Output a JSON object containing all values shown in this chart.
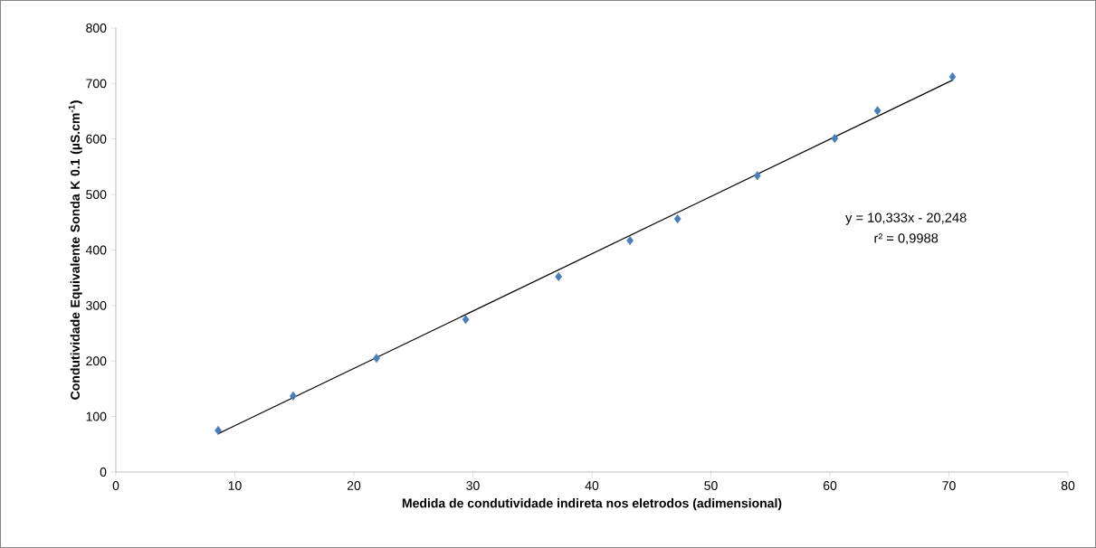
{
  "chart_data": {
    "type": "scatter",
    "xlabel": "Medida de condutividade  indireta nos eletrodos (adimensional)",
    "ylabel": "Condutividade Equivalente Sonda K 0.1 (µS.cm$^{-1}$)",
    "xlim": [
      0,
      80
    ],
    "xticks": [
      0,
      10,
      20,
      30,
      40,
      50,
      60,
      70,
      80
    ],
    "ylim": [
      0,
      800
    ],
    "yticks": [
      0,
      100,
      200,
      300,
      400,
      500,
      600,
      700,
      800
    ],
    "grid": false,
    "annotations": [
      "y = 10,333x - 20,248",
      "r² = 0,9988"
    ],
    "series": [
      {
        "color": "#4a7ebb",
        "marker": "diamond",
        "x": [
          8.6,
          14.9,
          21.9,
          29.4,
          37.2,
          43.2,
          47.2,
          53.9,
          60.4,
          64.0,
          70.3
        ],
        "values": [
          75,
          137,
          205,
          275,
          352,
          417,
          456,
          534,
          601,
          651,
          712
        ]
      },
      {
        "type": "line",
        "color": "#000000",
        "marker": "none",
        "line_style": "solid",
        "x": [
          8.6,
          70.3
        ],
        "values": [
          69,
          706
        ]
      }
    ]
  }
}
